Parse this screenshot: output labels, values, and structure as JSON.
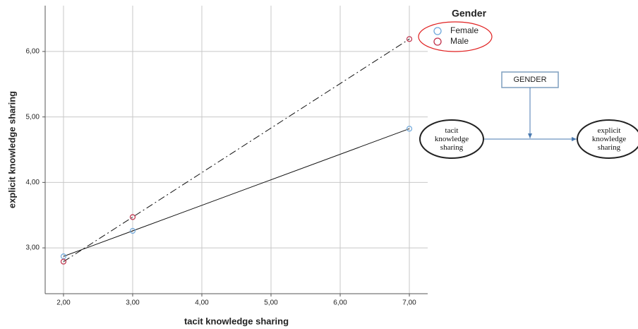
{
  "chart_data": {
    "type": "line",
    "x_label": "tacit knowledge sharing",
    "y_label": "explicit knowledge sharing",
    "x": [
      2,
      3,
      7
    ],
    "series": [
      {
        "name": "Female",
        "color": "#6fa8dc",
        "line_style": "solid",
        "values": [
          2.87,
          3.26,
          4.82
        ]
      },
      {
        "name": "Male",
        "color": "#c0304a",
        "line_style": "dashdot",
        "values": [
          2.79,
          3.47,
          6.19
        ]
      }
    ],
    "legend_title": "Gender",
    "legend": "top-right",
    "grid": true,
    "xlim": [
      1.735,
      7.265
    ],
    "ylim": [
      2.3,
      6.7
    ],
    "xticks": [
      {
        "value": 2,
        "label": "2,00"
      },
      {
        "value": 3,
        "label": "3,00"
      },
      {
        "value": 4,
        "label": "4,00"
      },
      {
        "value": 5,
        "label": "5,00"
      },
      {
        "value": 6,
        "label": "6,00"
      },
      {
        "value": 7,
        "label": "7,00"
      }
    ],
    "yticks": [
      {
        "value": 3,
        "label": "3,00"
      },
      {
        "value": 4,
        "label": "4,00"
      },
      {
        "value": 5,
        "label": "5,00"
      },
      {
        "value": 6,
        "label": "6,00"
      }
    ]
  },
  "diagram": {
    "moderator": "GENDER",
    "source": "tacit knowledge sharing",
    "target": "explicit knowledge sharing"
  }
}
